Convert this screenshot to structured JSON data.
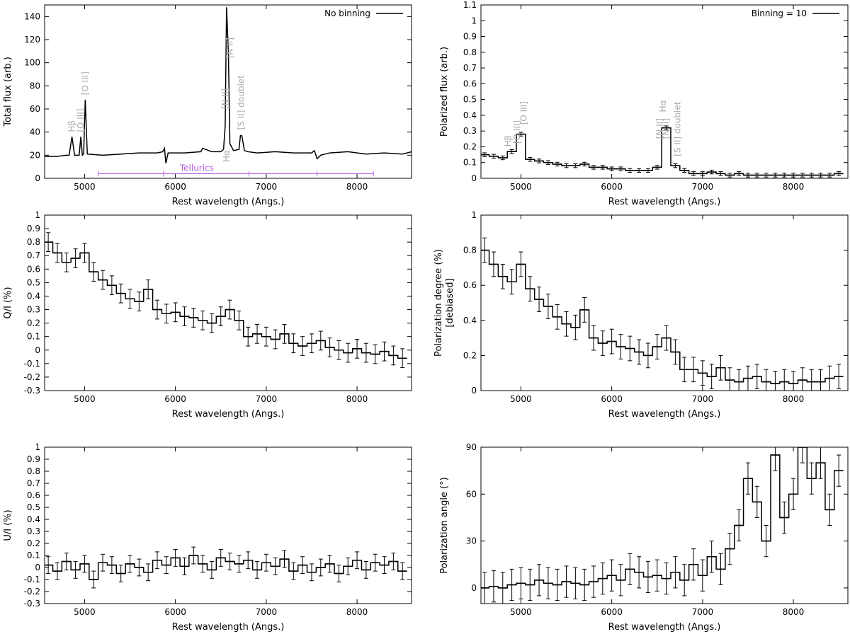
{
  "chart_data": [
    {
      "type": "line",
      "ylabel": [
        "Total flux (arb.)"
      ],
      "xlabel": "Rest wavelength (Angs.)",
      "xlim": [
        4560,
        8600
      ],
      "xticks": [
        5000,
        6000,
        7000,
        8000
      ],
      "ylim": [
        0,
        150
      ],
      "yticks": [
        0,
        20,
        40,
        60,
        80,
        100,
        120,
        140
      ],
      "legend": "upper right",
      "x": [
        4560,
        4700,
        4800,
        4830,
        4861,
        4890,
        4940,
        4959,
        4975,
        4990,
        5007,
        5030,
        5200,
        5400,
        5600,
        5800,
        5860,
        5880,
        5895,
        5920,
        6100,
        6280,
        6300,
        6400,
        6500,
        6530,
        6548,
        6563,
        6583,
        6600,
        6640,
        6700,
        6716,
        6731,
        6760,
        6800,
        6900,
        7100,
        7300,
        7500,
        7530,
        7560,
        7600,
        7700,
        7900,
        8100,
        8300,
        8500,
        8600
      ],
      "series": [
        {
          "name": "No binning",
          "color": "#000000",
          "values": [
            19,
            19,
            20,
            20,
            36,
            20,
            20,
            36,
            20,
            21,
            68,
            21,
            20,
            21,
            22,
            22,
            23,
            26,
            13,
            22,
            22,
            23,
            26,
            23,
            23,
            25,
            45,
            148,
            110,
            30,
            24,
            25,
            37,
            37,
            24,
            23,
            22,
            23,
            22,
            22,
            24,
            17,
            20,
            22,
            23,
            21,
            22,
            21,
            23
          ]
        }
      ],
      "annotations": [
        {
          "text": "Hβ",
          "x": 4861,
          "y": 40,
          "color": "#aaaaaa"
        },
        {
          "text": "[O III]",
          "x": 4959,
          "y": 40,
          "color": "#aaaaaa"
        },
        {
          "text": "[O III]",
          "x": 5007,
          "y": 72,
          "color": "#aaaaaa"
        },
        {
          "text": "[N II]",
          "x": 6548,
          "y": 60,
          "color": "#aaaaaa"
        },
        {
          "text": "Hα",
          "x": 6563,
          "y": 14,
          "color": "#aaaaaa"
        },
        {
          "text": "[N II]",
          "x": 6600,
          "y": 104,
          "color": "#aaaaaa"
        },
        {
          "text": "[S II] doublet",
          "x": 6724,
          "y": 42,
          "color": "#aaaaaa"
        }
      ],
      "tellurics": {
        "text": "Tellurics",
        "x_range": [
          5150,
          8180
        ],
        "breaks": [
          5870,
          6810,
          7560
        ],
        "y": 4,
        "color": "#b060e0"
      }
    },
    {
      "type": "step",
      "ylabel": [
        "Polarized flux (arb.)"
      ],
      "xlabel": "Rest wavelength (Angs.)",
      "xlim": [
        4560,
        8600
      ],
      "xticks": [
        5000,
        6000,
        7000,
        8000
      ],
      "ylim": [
        0,
        1.1
      ],
      "yticks": [
        0,
        0.1,
        0.2,
        0.3,
        0.4,
        0.5,
        0.6,
        0.7,
        0.8,
        0.9,
        1,
        1.1
      ],
      "legend": "upper right",
      "error": 0.012,
      "x": [
        4600,
        4700,
        4800,
        4900,
        5000,
        5100,
        5200,
        5300,
        5400,
        5500,
        5600,
        5700,
        5800,
        5900,
        6000,
        6100,
        6200,
        6300,
        6400,
        6500,
        6600,
        6700,
        6800,
        6900,
        7000,
        7100,
        7200,
        7300,
        7400,
        7500,
        7600,
        7700,
        7800,
        7900,
        8000,
        8100,
        8200,
        8300,
        8400,
        8500
      ],
      "series": [
        {
          "name": "Binning = 10",
          "color": "#000000",
          "values": [
            0.15,
            0.14,
            0.13,
            0.17,
            0.28,
            0.12,
            0.11,
            0.1,
            0.09,
            0.08,
            0.08,
            0.09,
            0.07,
            0.07,
            0.06,
            0.06,
            0.05,
            0.05,
            0.05,
            0.07,
            0.32,
            0.08,
            0.05,
            0.03,
            0.03,
            0.04,
            0.03,
            0.02,
            0.03,
            0.02,
            0.02,
            0.02,
            0.02,
            0.02,
            0.02,
            0.02,
            0.02,
            0.02,
            0.02,
            0.03
          ]
        }
      ],
      "annotations": [
        {
          "text": "Hβ",
          "x": 4861,
          "y": 0.2,
          "color": "#aaaaaa"
        },
        {
          "text": "[O III]",
          "x": 4959,
          "y": 0.22,
          "color": "#aaaaaa"
        },
        {
          "text": "[O III]",
          "x": 5030,
          "y": 0.34,
          "color": "#aaaaaa"
        },
        {
          "text": "[N II]",
          "x": 6530,
          "y": 0.25,
          "color": "#aaaaaa"
        },
        {
          "text": "Hα",
          "x": 6563,
          "y": 0.42,
          "color": "#aaaaaa"
        },
        {
          "text": "[N II]",
          "x": 6600,
          "y": 0.25,
          "color": "#aaaaaa"
        },
        {
          "text": "[S II] doublet",
          "x": 6724,
          "y": 0.14,
          "color": "#aaaaaa"
        }
      ]
    },
    {
      "type": "step",
      "ylabel": [
        "Q/I (%)"
      ],
      "xlabel": "Rest wavelength (Angs.)",
      "xlim": [
        4560,
        8600
      ],
      "xticks": [
        5000,
        6000,
        7000,
        8000
      ],
      "ylim": [
        -0.3,
        1
      ],
      "yticks": [
        -0.3,
        -0.2,
        -0.1,
        0,
        0.1,
        0.2,
        0.3,
        0.4,
        0.5,
        0.6,
        0.7,
        0.8,
        0.9,
        1
      ],
      "error": 0.07,
      "x": [
        4600,
        4700,
        4800,
        4900,
        5000,
        5100,
        5200,
        5300,
        5400,
        5500,
        5600,
        5700,
        5800,
        5900,
        6000,
        6100,
        6200,
        6300,
        6400,
        6500,
        6600,
        6700,
        6800,
        6900,
        7000,
        7100,
        7200,
        7300,
        7400,
        7500,
        7600,
        7700,
        7800,
        7900,
        8000,
        8100,
        8200,
        8300,
        8400,
        8500
      ],
      "series": [
        {
          "color": "#000000",
          "values": [
            0.8,
            0.72,
            0.65,
            0.68,
            0.72,
            0.58,
            0.52,
            0.48,
            0.42,
            0.38,
            0.36,
            0.45,
            0.3,
            0.27,
            0.28,
            0.25,
            0.24,
            0.22,
            0.2,
            0.25,
            0.3,
            0.22,
            0.1,
            0.12,
            0.1,
            0.08,
            0.12,
            0.05,
            0.03,
            0.05,
            0.07,
            0.02,
            0,
            -0.02,
            0.01,
            -0.02,
            -0.03,
            -0.01,
            -0.04,
            -0.06
          ]
        }
      ]
    },
    {
      "type": "step",
      "ylabel": [
        "Polarization degree (%)",
        "[debiased]"
      ],
      "xlabel": "Rest wavelength (Angs.)",
      "xlim": [
        4560,
        8600
      ],
      "xticks": [
        5000,
        6000,
        7000,
        8000
      ],
      "ylim": [
        0,
        1
      ],
      "yticks": [
        0,
        0.2,
        0.4,
        0.6,
        0.8,
        1
      ],
      "error": 0.07,
      "x": [
        4600,
        4700,
        4800,
        4900,
        5000,
        5100,
        5200,
        5300,
        5400,
        5500,
        5600,
        5700,
        5800,
        5900,
        6000,
        6100,
        6200,
        6300,
        6400,
        6500,
        6600,
        6700,
        6800,
        6900,
        7000,
        7100,
        7200,
        7300,
        7400,
        7500,
        7600,
        7700,
        7800,
        7900,
        8000,
        8100,
        8200,
        8300,
        8400,
        8500
      ],
      "series": [
        {
          "color": "#000000",
          "values": [
            0.8,
            0.72,
            0.65,
            0.62,
            0.72,
            0.58,
            0.52,
            0.48,
            0.42,
            0.38,
            0.36,
            0.46,
            0.3,
            0.27,
            0.28,
            0.25,
            0.24,
            0.22,
            0.2,
            0.25,
            0.3,
            0.22,
            0.12,
            0.12,
            0.1,
            0.08,
            0.13,
            0.06,
            0.05,
            0.07,
            0.08,
            0.05,
            0.04,
            0.05,
            0.04,
            0.06,
            0.05,
            0.05,
            0.07,
            0.08
          ]
        }
      ]
    },
    {
      "type": "step",
      "ylabel": [
        "U/I (%)"
      ],
      "xlabel": "Rest wavelength (Angs.)",
      "xlim": [
        4560,
        8600
      ],
      "xticks": [
        5000,
        6000,
        7000,
        8000
      ],
      "ylim": [
        -0.3,
        1
      ],
      "yticks": [
        -0.3,
        -0.2,
        -0.1,
        0,
        0.1,
        0.2,
        0.3,
        0.4,
        0.5,
        0.6,
        0.7,
        0.8,
        0.9,
        1
      ],
      "error": 0.07,
      "x": [
        4600,
        4700,
        4800,
        4900,
        5000,
        5100,
        5200,
        5300,
        5400,
        5500,
        5600,
        5700,
        5800,
        5900,
        6000,
        6100,
        6200,
        6300,
        6400,
        6500,
        6600,
        6700,
        6800,
        6900,
        7000,
        7100,
        7200,
        7300,
        7400,
        7500,
        7600,
        7700,
        7800,
        7900,
        8000,
        8100,
        8200,
        8300,
        8400,
        8500
      ],
      "series": [
        {
          "color": "#000000",
          "values": [
            0.02,
            -0.03,
            0.05,
            -0.02,
            0.03,
            -0.1,
            0.04,
            0.02,
            -0.05,
            0.03,
            0,
            -0.04,
            0.06,
            0.02,
            0.08,
            0.01,
            0.1,
            0.03,
            -0.02,
            0.08,
            0.05,
            0.03,
            0.06,
            -0.02,
            0.04,
            0.01,
            0.07,
            -0.03,
            0.02,
            -0.04,
            0,
            0.03,
            -0.05,
            0.01,
            0.06,
            -0.02,
            0.04,
            0.02,
            0.05,
            -0.03
          ]
        }
      ]
    },
    {
      "type": "step",
      "ylabel": [
        "Polarization angle (°)"
      ],
      "xlabel": "Rest wavelength (Angs.)",
      "xlim": [
        4560,
        8600
      ],
      "xticks": [
        5000,
        6000,
        7000,
        8000
      ],
      "ylim": [
        -10,
        90
      ],
      "yticks": [
        0,
        30,
        60,
        90
      ],
      "error": 10,
      "x": [
        4600,
        4700,
        4800,
        4900,
        5000,
        5100,
        5200,
        5300,
        5400,
        5500,
        5600,
        5700,
        5800,
        5900,
        6000,
        6100,
        6200,
        6300,
        6400,
        6500,
        6600,
        6700,
        6800,
        6900,
        7000,
        7100,
        7200,
        7300,
        7400,
        7500,
        7600,
        7700,
        7800,
        7900,
        8000,
        8100,
        8200,
        8300,
        8400,
        8500
      ],
      "series": [
        {
          "color": "#000000",
          "values": [
            0,
            1,
            0,
            2,
            3,
            2,
            5,
            3,
            2,
            4,
            3,
            2,
            4,
            6,
            8,
            5,
            12,
            10,
            7,
            8,
            6,
            10,
            5,
            15,
            8,
            20,
            12,
            25,
            40,
            70,
            55,
            30,
            85,
            45,
            60,
            90,
            70,
            80,
            50,
            75
          ]
        }
      ]
    }
  ]
}
